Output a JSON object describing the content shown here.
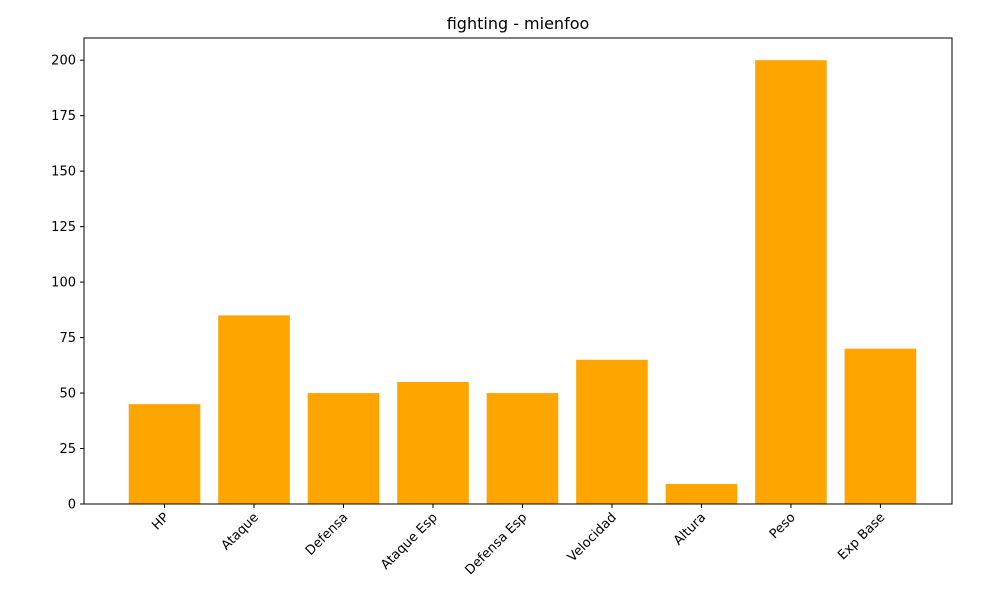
{
  "chart_data": {
    "type": "bar",
    "title": "fighting - mienfoo",
    "xlabel": "",
    "ylabel": "",
    "categories": [
      "HP",
      "Ataque",
      "Defensa",
      "Ataque Esp",
      "Defensa Esp",
      "Velocidad",
      "Altura",
      "Peso",
      "Exp Base"
    ],
    "values": [
      45,
      85,
      50,
      55,
      50,
      65,
      9,
      200,
      70
    ],
    "ylim": [
      0,
      210
    ],
    "yticks": [
      0,
      25,
      50,
      75,
      100,
      125,
      150,
      175,
      200
    ],
    "bar_color": "#ffa500",
    "grid": false,
    "legend": "none"
  }
}
